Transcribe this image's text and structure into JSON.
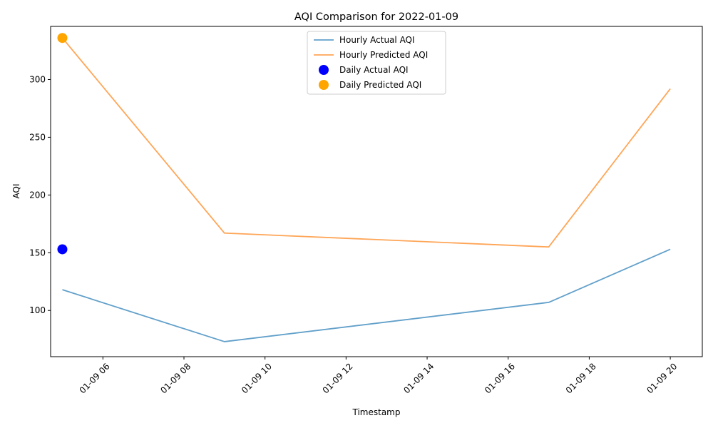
{
  "chart_data": {
    "type": "line",
    "title": "AQI Comparison for 2022-01-09",
    "xlabel": "Timestamp",
    "ylabel": "AQI",
    "x_range": [
      4.71,
      20.79
    ],
    "ylim": [
      60,
      346
    ],
    "x_ticks": [
      {
        "value": 6,
        "label": "01-09 06"
      },
      {
        "value": 8,
        "label": "01-09 08"
      },
      {
        "value": 10,
        "label": "01-09 10"
      },
      {
        "value": 12,
        "label": "01-09 12"
      },
      {
        "value": 14,
        "label": "01-09 14"
      },
      {
        "value": 16,
        "label": "01-09 16"
      },
      {
        "value": 18,
        "label": "01-09 18"
      },
      {
        "value": 20,
        "label": "01-09 20"
      }
    ],
    "y_ticks": [
      100,
      150,
      200,
      250,
      300
    ],
    "grid": false,
    "legend_position": "top-center",
    "series": [
      {
        "name": "Hourly Actual AQI",
        "kind": "line",
        "color": "#1f77b4",
        "x": [
          5,
          9,
          17,
          20
        ],
        "y": [
          118,
          73,
          107,
          153
        ]
      },
      {
        "name": "Hourly Predicted AQI",
        "kind": "line",
        "color": "#ff7f0e",
        "x": [
          5,
          9,
          17,
          20
        ],
        "y": [
          336,
          167,
          155,
          292
        ]
      },
      {
        "name": "Daily Actual AQI",
        "kind": "scatter",
        "color": "#0000ff",
        "x": [
          5
        ],
        "y": [
          153
        ]
      },
      {
        "name": "Daily Predicted AQI",
        "kind": "scatter",
        "color": "#ffa500",
        "x": [
          5
        ],
        "y": [
          336
        ]
      }
    ]
  }
}
